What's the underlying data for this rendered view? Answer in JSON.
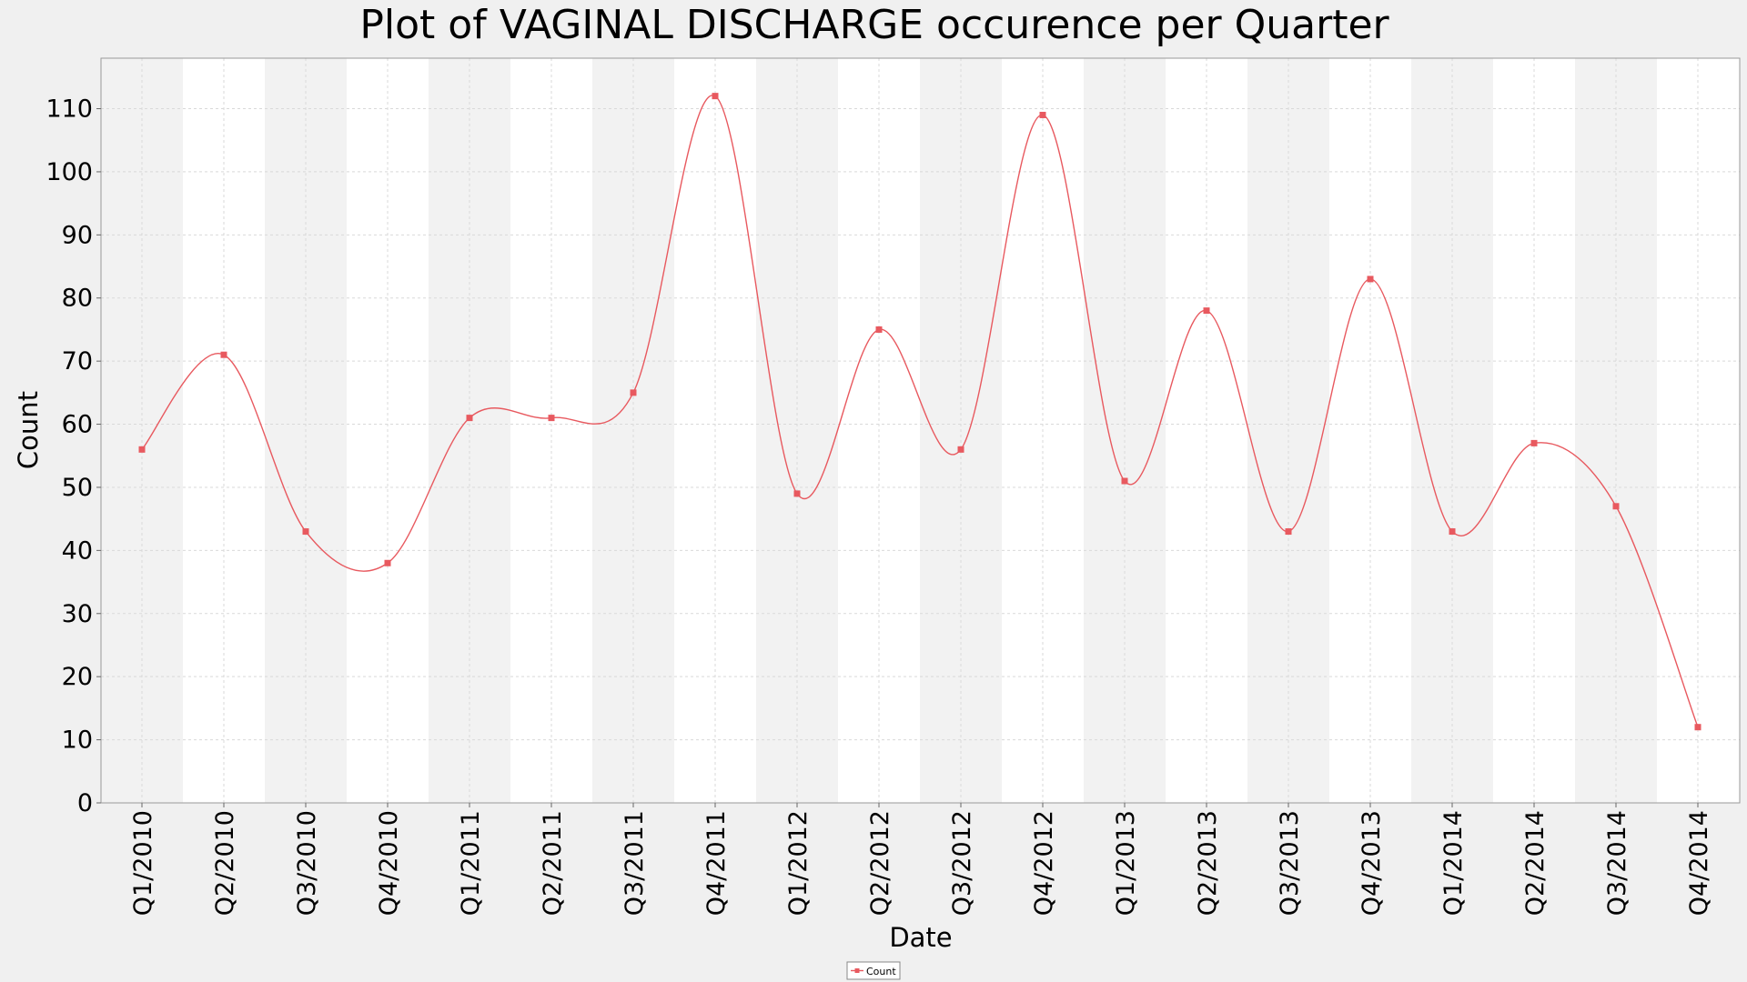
{
  "chart_data": {
    "type": "line",
    "title": "Plot of VAGINAL DISCHARGE occurence per Quarter",
    "xlabel": "Date",
    "ylabel": "Count",
    "ylim": [
      0,
      118
    ],
    "yticks": [
      0,
      10,
      20,
      30,
      40,
      50,
      60,
      70,
      80,
      90,
      100,
      110
    ],
    "grid": true,
    "legend_position": "bottom-center",
    "categories": [
      "Q1/2010",
      "Q2/2010",
      "Q3/2010",
      "Q4/2010",
      "Q1/2011",
      "Q2/2011",
      "Q3/2011",
      "Q4/2011",
      "Q1/2012",
      "Q2/2012",
      "Q3/2012",
      "Q4/2012",
      "Q1/2013",
      "Q2/2013",
      "Q3/2013",
      "Q4/2013",
      "Q1/2014",
      "Q2/2014",
      "Q3/2014",
      "Q4/2014"
    ],
    "series": [
      {
        "name": "Count",
        "color": "#e8595f",
        "values": [
          56,
          71,
          43,
          38,
          61,
          61,
          65,
          112,
          49,
          75,
          56,
          109,
          51,
          78,
          43,
          83,
          43,
          57,
          47,
          12
        ]
      }
    ],
    "colors": {
      "band": "#f2f2f2",
      "plot_bg": "#ffffff",
      "grid": "#d9d9d9",
      "line": "#e8595f",
      "page_bg": "#f0f0f0"
    }
  }
}
